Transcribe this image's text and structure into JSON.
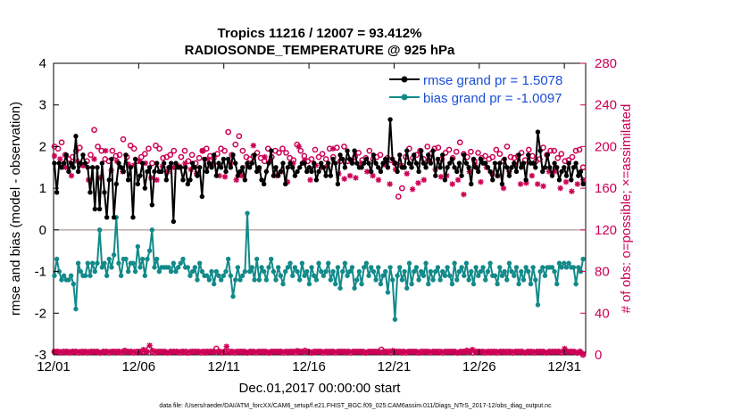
{
  "chart_data": {
    "type": "line",
    "title": "Tropics 11216 / 12007 = 93.412%",
    "subtitle": "RADIOSONDE_TEMPERATURE @ 925 hPa",
    "xlabel": "Dec.01,2017 00:00:00 start",
    "ylabel": "rmse and bias (model - observation)",
    "y2label": "# of obs: o=possible; ×=assimilated",
    "footer": "data file: /Users/raeder/DAI/ATM_forcXX/CAM6_setup/f.e21.FHIST_BGC.f09_025.CAM6assim.011/Diags_NTrS_2017-12/obs_diag_output.nc",
    "xlim": [
      0,
      31.25
    ],
    "ylim": [
      -3,
      4
    ],
    "y2lim": [
      0,
      280
    ],
    "xticks": [
      0,
      5,
      10,
      15,
      20,
      25,
      30
    ],
    "xticklabels": [
      "12/01",
      "12/06",
      "12/11",
      "12/16",
      "12/21",
      "12/26",
      "12/31"
    ],
    "yticks": [
      -3,
      -2,
      -1,
      0,
      1,
      2,
      3,
      4
    ],
    "y2ticks": [
      0,
      40,
      80,
      120,
      160,
      200,
      240,
      280
    ],
    "legend_position": "top-right",
    "series": [
      {
        "name": "rmse grand pr = 1.5078",
        "color": "#000000",
        "axis": "left",
        "values": [
          1.6,
          0.9,
          1.6,
          1.5,
          1.6,
          1.8,
          1.4,
          1.6,
          1.5,
          2.25,
          1.4,
          1.6,
          1.8,
          1.6,
          1.5,
          0.9,
          1.5,
          0.5,
          1.5,
          0.5,
          1.6,
          0.9,
          0.3,
          1.2,
          1.7,
          0.3,
          1.1,
          1.6,
          1.5,
          1.4,
          1.8,
          1.2,
          1.5,
          0.3,
          1.7,
          1.1,
          1.3,
          1.6,
          1.0,
          1.4,
          1.5,
          0.6,
          1.4,
          1.6,
          1.4,
          1.4,
          1.6,
          1.2,
          1.5,
          1.6,
          0.2,
          1.6,
          1.5,
          1.5,
          1.2,
          1.5,
          1.1,
          1.2,
          1.6,
          1.5,
          1.3,
          1.5,
          0.8,
          1.7,
          1.4,
          1.6,
          1.5,
          1.8,
          1.3,
          1.6,
          1.5,
          1.7,
          1.4,
          1.7,
          1.5,
          1.8,
          1.6,
          1.3,
          1.4,
          1.5,
          1.2,
          1.6,
          1.5,
          1.6,
          1.8,
          1.4,
          1.5,
          1.2,
          1.1,
          1.4,
          1.6,
          1.9,
          1.3,
          1.5,
          1.3,
          1.4,
          1.6,
          1.1,
          1.5,
          1.6,
          1.5,
          1.3,
          1.4,
          1.5,
          1.6,
          1.6,
          1.4,
          1.5,
          1.4,
          1.6,
          1.2,
          1.4,
          1.6,
          1.5,
          1.3,
          1.6,
          1.3,
          1.7,
          1.6,
          1.1,
          1.8,
          1.7,
          1.5,
          1.9,
          1.7,
          1.6,
          1.9,
          1.6,
          1.5,
          1.5,
          1.6,
          1.7,
          1.6,
          1.4,
          1.8,
          1.6,
          1.5,
          1.4,
          1.6,
          1.7,
          1.5,
          2.65,
          1.7,
          1.6,
          1.4,
          1.8,
          1.5,
          1.5,
          1.9,
          1.6,
          1.5,
          1.8,
          1.6,
          1.4,
          1.9,
          1.6,
          1.5,
          1.8,
          1.6,
          1.9,
          1.3,
          1.7,
          1.5,
          1.8,
          1.2,
          1.5,
          1.6,
          1.7,
          1.5,
          1.4,
          1.6,
          1.3,
          1.8,
          1.6,
          1.5,
          1.1,
          1.7,
          1.5,
          1.4,
          1.7,
          1.6,
          1.6,
          1.5,
          1.4,
          1.2,
          1.6,
          1.3,
          1.6,
          1.1,
          1.7,
          1.5,
          1.3,
          1.5,
          1.6,
          1.4,
          1.8,
          1.5,
          1.6,
          1.2,
          1.8,
          1.6,
          1.6,
          1.5,
          2.35,
          1.9,
          1.4,
          1.5,
          1.8,
          1.5,
          1.3,
          1.6,
          1.5,
          1.2,
          1.4,
          1.5,
          1.3,
          1.6,
          1.2,
          1.5,
          1.6,
          1.3,
          1.4,
          1.1
        ]
      },
      {
        "name": "bias grand pr = -1.0097",
        "color": "#138a8a",
        "axis": "left",
        "values": [
          -1.1,
          -0.7,
          -1.0,
          -1.2,
          -1.1,
          -1.2,
          -1.2,
          -1.1,
          -1.3,
          -1.9,
          -0.8,
          -1.0,
          -1.1,
          -1.1,
          -0.8,
          -1.1,
          -0.8,
          -1.0,
          -0.8,
          0.0,
          -0.9,
          -0.8,
          -1.1,
          -0.7,
          -0.9,
          -0.6,
          0.3,
          -0.8,
          -1.1,
          -0.7,
          -0.7,
          -1.0,
          -0.8,
          -0.8,
          -1.0,
          -0.4,
          -0.9,
          -0.7,
          -1.1,
          -0.7,
          -0.5,
          0.0,
          -0.9,
          -0.7,
          -1.0,
          -0.9,
          -0.9,
          -0.9,
          -0.9,
          -1.0,
          -0.8,
          -1.0,
          -0.9,
          -0.8,
          -0.7,
          -0.9,
          -0.9,
          -1.1,
          -1.0,
          -0.9,
          -1.2,
          -0.8,
          -1.0,
          -1.1,
          -1.1,
          -1.2,
          -1.0,
          -1.3,
          -1.0,
          -1.1,
          -1.2,
          -1.1,
          -1.0,
          -0.7,
          -1.1,
          -1.6,
          -1.2,
          -0.9,
          -1.2,
          -1.1,
          -1.0,
          0.4,
          -1.0,
          -0.9,
          -1.2,
          -0.7,
          -1.2,
          -0.9,
          -1.0,
          -1.2,
          -0.9,
          -0.7,
          -1.0,
          -1.2,
          -0.9,
          -1.1,
          -1.3,
          -1.0,
          -0.9,
          -0.8,
          -1.1,
          -0.9,
          -1.0,
          -1.2,
          -0.8,
          -1.1,
          -1.0,
          -1.3,
          -0.9,
          -1.1,
          -1.2,
          -0.8,
          -1.0,
          -1.1,
          -1.0,
          -0.8,
          -1.2,
          -1.0,
          -1.3,
          -0.9,
          -1.4,
          -1.0,
          -0.8,
          -1.1,
          -1.0,
          -0.9,
          -1.4,
          -1.2,
          -1.0,
          -1.3,
          -0.9,
          -0.8,
          -1.1,
          -0.9,
          -1.0,
          -1.2,
          -0.9,
          -1.3,
          -1.1,
          -1.0,
          -1.5,
          -0.9,
          -1.2,
          -2.15,
          -1.1,
          -0.9,
          -1.2,
          -1.0,
          -1.4,
          -0.8,
          -1.3,
          -1.0,
          -0.9,
          -1.2,
          -1.0,
          -1.1,
          -0.8,
          -1.3,
          -1.0,
          -1.2,
          -1.0,
          -0.9,
          -1.2,
          -1.0,
          -1.1,
          -0.9,
          -1.1,
          -1.3,
          -0.8,
          -1.2,
          -1.0,
          -0.9,
          -1.1,
          -0.8,
          -1.2,
          -1.0,
          -1.3,
          -0.9,
          -1.1,
          -1.0,
          -0.9,
          -1.2,
          -1.0,
          -0.8,
          -1.1,
          -1.1,
          -1.3,
          -0.9,
          -1.1,
          -1.0,
          -1.2,
          -0.8,
          -1.0,
          -1.1,
          -0.9,
          -1.3,
          -1.0,
          -1.2,
          -0.9,
          -1.0,
          -1.3,
          -0.9,
          -1.2,
          -1.8,
          -1.0,
          -0.9,
          -1.1,
          -0.9,
          -0.9,
          -0.9,
          -1.0,
          -1.3,
          -0.8,
          -0.9,
          -0.8,
          -0.9,
          -0.8,
          -0.9,
          -0.9,
          -1.3,
          -0.9,
          -1.0,
          -0.7
        ]
      },
      {
        "name": "possible",
        "color": "#cc0055",
        "axis": "right",
        "marker": "circle",
        "values": [
          200,
          198,
          204,
          192,
          188,
          190,
          196,
          199,
          182,
          186,
          192,
          216,
          200,
          196,
          188,
          186,
          196,
          191,
          192,
          207,
          190,
          201,
          198,
          186,
          190,
          193,
          198,
          184,
          201,
          198,
          189,
          190,
          192,
          196,
          181,
          190,
          196,
          186,
          192,
          184,
          189,
          196,
          198,
          191,
          189,
          193,
          198,
          196,
          214,
          192,
          202,
          210,
          196,
          190,
          188,
          191,
          194,
          189,
          186,
          198,
          190,
          196,
          194,
          198,
          194,
          189,
          187,
          202,
          196,
          191,
          186,
          188,
          197,
          190,
          193,
          188,
          198,
          190,
          199,
          186,
          200,
          186,
          186,
          190,
          194,
          187,
          189,
          196,
          188,
          190,
          192,
          183,
          189,
          187,
          184,
          152,
          160,
          190,
          198,
          189,
          192,
          196,
          188,
          200,
          193,
          198,
          199,
          188,
          194,
          197,
          189,
          195,
          204,
          193,
          190,
          195,
          186,
          194,
          189,
          191,
          188,
          190,
          197,
          193,
          186,
          200,
          190,
          189,
          191,
          194,
          187,
          197,
          191,
          186,
          188,
          199,
          192,
          196,
          196,
          189,
          193,
          186,
          187,
          190,
          196,
          197,
          180
        ]
      },
      {
        "name": "assimilated",
        "color": "#cc0055",
        "axis": "right",
        "marker": "star",
        "values": [
          191,
          188,
          180,
          172,
          186,
          182,
          168,
          188,
          170,
          196,
          177,
          186,
          176,
          183,
          182,
          186,
          184,
          170,
          168,
          181,
          176,
          180,
          181,
          184,
          178,
          174,
          196,
          188,
          183,
          172,
          171,
          184,
          168,
          172,
          182,
          201,
          179,
          190,
          186,
          172,
          176,
          166,
          184,
          200,
          187,
          168,
          182,
          180,
          181,
          198,
          174,
          169,
          172,
          170,
          184,
          176,
          172,
          168,
          183,
          164,
          178,
          182,
          174,
          159,
          165,
          168,
          186,
          178,
          171,
          172,
          164,
          168,
          154,
          176,
          182,
          166,
          180,
          174,
          172,
          160,
          176,
          183,
          164,
          165,
          172,
          164,
          162,
          176,
          176,
          160,
          166,
          157,
          164,
          168
        ]
      },
      {
        "name": "possible bottom",
        "color": "#cc0055",
        "axis": "right",
        "marker": "circle",
        "values": [
          3,
          3,
          2,
          3,
          3,
          2,
          3,
          3,
          2,
          3,
          3,
          2,
          3,
          3,
          3,
          2,
          3,
          3,
          2,
          3,
          3,
          3,
          2,
          4,
          3,
          3,
          2,
          3,
          3,
          3,
          3,
          6,
          3,
          2,
          3,
          3,
          3,
          2,
          3,
          3,
          3,
          2,
          3,
          3,
          2,
          3,
          3,
          3,
          2,
          3,
          3,
          3,
          3,
          6,
          3,
          2,
          3,
          3,
          3,
          2,
          3,
          3,
          3,
          2,
          3,
          3,
          2,
          3,
          3,
          3,
          2,
          3,
          3,
          3,
          3,
          2,
          3,
          3,
          3,
          2,
          3,
          3,
          4,
          3,
          2,
          3,
          3,
          3,
          2,
          3,
          3,
          3,
          2,
          3,
          3,
          3,
          3,
          2,
          3,
          3,
          3,
          3,
          2,
          3,
          3,
          3,
          3,
          5,
          3,
          3,
          2,
          3,
          3,
          3,
          3,
          2,
          3,
          3,
          3,
          2,
          3,
          3,
          3,
          2,
          3,
          3,
          3,
          2,
          3,
          3,
          3,
          3,
          2,
          3,
          3,
          4,
          3,
          2,
          3,
          3,
          3,
          2,
          3,
          3,
          3,
          2,
          3,
          3,
          3,
          3,
          2,
          3,
          3,
          3,
          2,
          3,
          3,
          2,
          3,
          3,
          3,
          2,
          3,
          3,
          3,
          3,
          2,
          3,
          3,
          3,
          3,
          2,
          3,
          0
        ]
      },
      {
        "name": "assimilated bottom",
        "color": "#cc0055",
        "axis": "right",
        "marker": "star",
        "values": [
          3,
          3,
          3,
          2,
          3,
          3,
          3,
          3,
          3,
          2,
          3,
          3,
          3,
          3,
          3,
          2,
          3,
          3,
          3,
          3,
          2,
          3,
          3,
          3,
          3,
          3,
          3,
          2,
          3,
          5,
          3,
          9,
          4,
          3,
          3,
          3,
          3,
          2,
          3,
          3,
          3,
          3,
          3,
          2,
          3,
          3,
          3,
          3,
          3,
          2,
          3,
          3,
          3,
          3,
          3,
          3,
          8,
          2,
          3,
          3,
          3,
          3,
          3,
          2,
          3,
          3,
          3,
          3,
          3,
          3,
          2,
          3,
          3,
          3,
          3,
          3,
          2,
          3,
          3,
          4,
          3,
          3,
          3,
          3,
          2,
          3,
          3,
          3,
          3,
          2,
          3,
          3,
          3,
          3,
          3,
          2,
          3,
          3,
          3,
          3,
          3,
          2,
          3,
          3,
          3,
          3,
          2,
          3,
          3,
          3,
          4,
          3,
          3,
          2,
          3,
          3,
          3,
          3,
          3,
          2,
          3,
          3,
          3,
          3,
          3,
          2,
          3,
          3,
          3,
          3,
          3,
          2,
          3,
          3,
          3,
          3,
          5,
          3,
          3,
          3,
          3,
          3,
          2,
          3,
          3,
          3,
          3,
          2,
          3,
          3,
          3,
          3,
          3,
          2,
          3,
          3,
          3,
          3,
          3,
          3,
          2,
          3,
          3,
          3,
          3,
          3,
          6,
          3,
          3,
          3,
          2,
          3,
          1
        ]
      }
    ]
  }
}
